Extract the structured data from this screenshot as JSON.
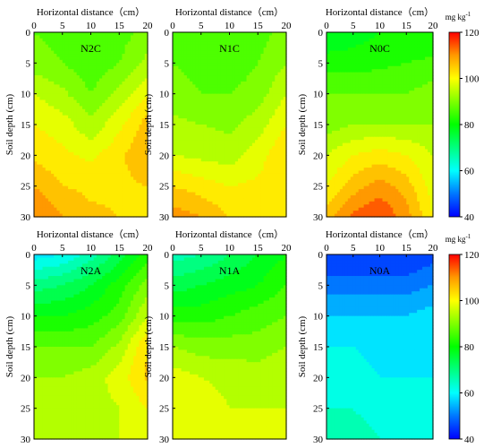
{
  "chart_data": {
    "type": "heatmap",
    "xlabel": "Horizontal distance（cm）",
    "ylabel": "Soil depth (cm)",
    "x_ticks": [
      0,
      5,
      10,
      15,
      20
    ],
    "y_ticks": [
      0,
      5,
      10,
      15,
      20,
      25,
      30
    ],
    "xlim": [
      0,
      20
    ],
    "ylim": [
      0,
      30
    ],
    "colorbar": {
      "unit_text": "mg kg",
      "unit_superscript": "-1",
      "min": 40,
      "max": 120,
      "ticks": [
        40,
        60,
        80,
        100,
        120
      ],
      "stops": [
        {
          "value": 40,
          "color": "#0000ff"
        },
        {
          "value": 50,
          "color": "#0077ff"
        },
        {
          "value": 60,
          "color": "#00ffff"
        },
        {
          "value": 80,
          "color": "#00ff00"
        },
        {
          "value": 100,
          "color": "#ffff00"
        },
        {
          "value": 110,
          "color": "#ff9900"
        },
        {
          "value": 120,
          "color": "#ff0000"
        }
      ]
    },
    "x_grid": [
      0,
      5,
      10,
      15,
      20
    ],
    "y_grid": [
      0,
      5,
      10,
      15,
      20,
      25,
      30
    ],
    "panels": [
      {
        "label": "N2C",
        "values": [
          [
            88,
            86,
            85,
            86,
            90
          ],
          [
            90,
            88,
            85,
            88,
            93
          ],
          [
            96,
            93,
            88,
            93,
            100
          ],
          [
            100,
            98,
            93,
            99,
            106
          ],
          [
            103,
            101,
            99,
            103,
            108
          ],
          [
            108,
            104,
            103,
            103,
            104
          ],
          [
            112,
            108,
            105,
            104,
            102
          ]
        ]
      },
      {
        "label": "N1C",
        "values": [
          [
            88,
            86,
            85,
            86,
            90
          ],
          [
            88,
            86,
            85,
            88,
            92
          ],
          [
            90,
            88,
            88,
            90,
            96
          ],
          [
            93,
            92,
            91,
            94,
            100
          ],
          [
            96,
            95,
            94,
            98,
            104
          ],
          [
            104,
            102,
            100,
            101,
            103
          ],
          [
            110,
            108,
            104,
            103,
            103
          ]
        ]
      },
      {
        "label": "N0C",
        "values": [
          [
            76,
            78,
            80,
            80,
            80
          ],
          [
            82,
            82,
            83,
            84,
            85
          ],
          [
            88,
            88,
            88,
            88,
            90
          ],
          [
            90,
            92,
            92,
            92,
            92
          ],
          [
            96,
            100,
            102,
            100,
            96
          ],
          [
            100,
            106,
            110,
            106,
            98
          ],
          [
            106,
            113,
            116,
            110,
            100
          ]
        ]
      },
      {
        "label": "N2A",
        "values": [
          [
            58,
            60,
            66,
            74,
            82
          ],
          [
            70,
            72,
            76,
            82,
            90
          ],
          [
            80,
            80,
            82,
            86,
            96
          ],
          [
            88,
            88,
            88,
            93,
            104
          ],
          [
            92,
            92,
            94,
            98,
            105
          ],
          [
            94,
            94,
            94,
            96,
            100
          ],
          [
            96,
            96,
            96,
            96,
            96
          ]
        ]
      },
      {
        "label": "N1A",
        "values": [
          [
            66,
            68,
            72,
            76,
            80
          ],
          [
            74,
            76,
            78,
            80,
            84
          ],
          [
            82,
            82,
            84,
            86,
            88
          ],
          [
            92,
            90,
            90,
            90,
            92
          ],
          [
            98,
            96,
            95,
            94,
            96
          ],
          [
            100,
            98,
            96,
            96,
            96
          ],
          [
            97,
            98,
            98,
            98,
            98
          ]
        ]
      },
      {
        "label": "N0A",
        "values": [
          [
            44,
            44,
            44,
            44,
            46
          ],
          [
            50,
            50,
            50,
            50,
            52
          ],
          [
            56,
            56,
            56,
            56,
            58
          ],
          [
            60,
            60,
            58,
            56,
            58
          ],
          [
            62,
            62,
            60,
            60,
            60
          ],
          [
            64,
            64,
            62,
            62,
            62
          ],
          [
            66,
            66,
            64,
            64,
            64
          ]
        ]
      }
    ]
  }
}
